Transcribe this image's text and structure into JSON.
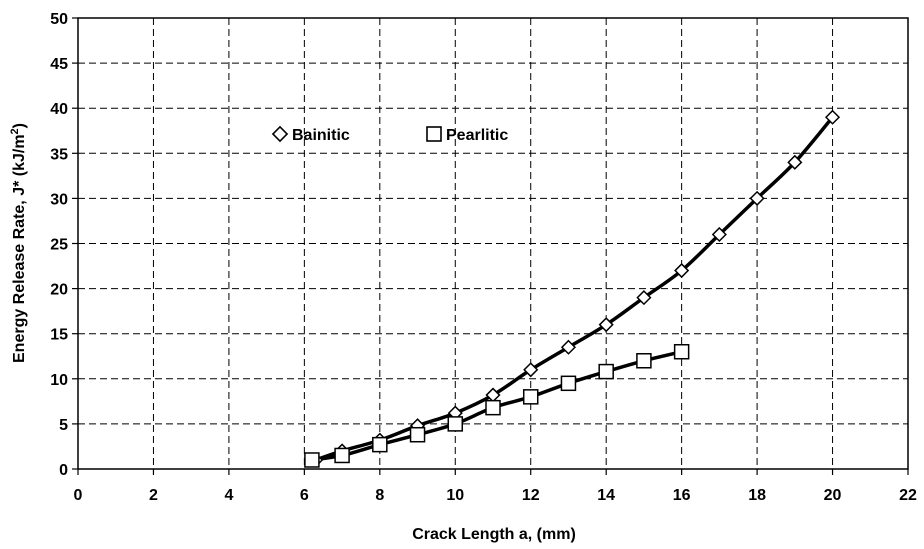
{
  "chart_data": {
    "type": "scatter",
    "title": "",
    "xlabel": "Crack Length a, (mm)",
    "ylabel": {
      "main": "Energy Release Rate, J* (kJ/m",
      "superscript": "2",
      "close": ")"
    },
    "xlim": [
      0,
      22
    ],
    "ylim": [
      0,
      50
    ],
    "xticks": [
      "0",
      "2",
      "4",
      "6",
      "8",
      "10",
      "12",
      "14",
      "16",
      "18",
      "20",
      "22"
    ],
    "yticks": [
      "0",
      "5",
      "10",
      "15",
      "20",
      "25",
      "30",
      "35",
      "40",
      "45",
      "50"
    ],
    "grid": true,
    "legend_position": "top-left",
    "series": [
      {
        "name": "Bainitic",
        "marker": "diamond",
        "color": "#000000",
        "x": [
          6.3,
          7,
          8,
          9,
          10,
          11,
          12,
          13,
          14,
          15,
          16,
          17,
          18,
          19,
          20
        ],
        "y": [
          1,
          2,
          3.2,
          4.8,
          6.2,
          8.2,
          11,
          13.5,
          16,
          19,
          22,
          26,
          30,
          34,
          39
        ]
      },
      {
        "name": "Pearlitic",
        "marker": "square",
        "color": "#000000",
        "x": [
          6.2,
          7,
          8,
          9,
          10,
          11,
          12,
          13,
          14,
          15,
          16
        ],
        "y": [
          1,
          1.5,
          2.7,
          3.8,
          5,
          6.8,
          8,
          9.5,
          10.8,
          12,
          13
        ]
      }
    ]
  }
}
